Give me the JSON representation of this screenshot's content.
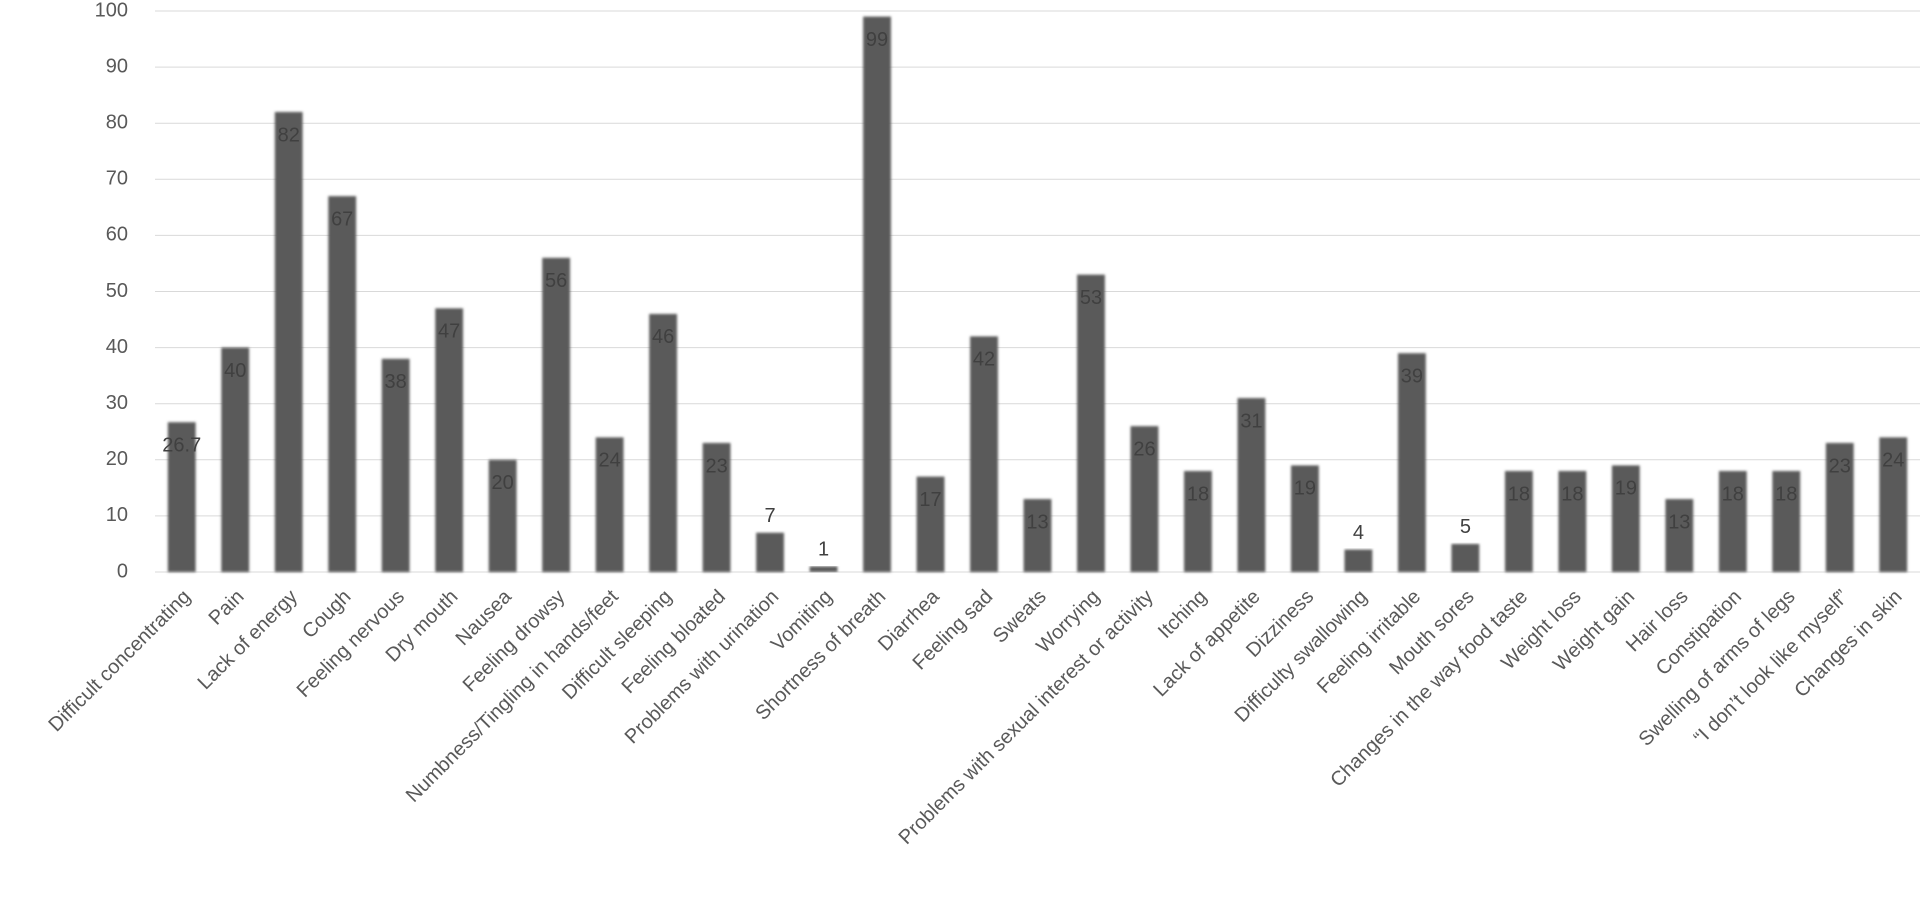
{
  "chart_data": {
    "type": "bar",
    "categories": [
      "Difficult concentrating",
      "Pain",
      "Lack of energy",
      "Cough",
      "Feeling nervous",
      "Dry mouth",
      "Nausea",
      "Feeling drowsy",
      "Numbness/Tingling in hands/feet",
      "Difficult sleeping",
      "Feeling bloated",
      "Problems with urination",
      "Vomiting",
      "Shortness of breath",
      "Diarrhea",
      "Feeling sad",
      "Sweats",
      "Worrying",
      "Problems with sexual interest or activity",
      "Itching",
      "Lack of appetite",
      "Dizziness",
      "Difficulty swallowing",
      "Feeling irritable",
      "Mouth sores",
      "Changes in the way food taste",
      "Weight loss",
      "Weight gain",
      "Hair loss",
      "Constipation",
      "Swelling of arms of legs",
      "“I don’t look like myself”",
      "Changes in skin"
    ],
    "values": [
      26.7,
      40,
      82,
      67,
      38,
      47,
      20,
      56,
      24,
      46,
      23,
      7,
      1,
      99,
      17,
      42,
      13,
      53,
      26,
      18,
      31,
      19,
      4,
      39,
      5,
      18,
      18,
      19,
      13,
      18,
      18,
      23,
      24
    ],
    "color": "#5a5a5a",
    "ylim": [
      0,
      100
    ],
    "yticks": [
      0,
      10,
      20,
      30,
      40,
      50,
      60,
      70,
      80,
      90,
      100
    ],
    "grid": true
  }
}
